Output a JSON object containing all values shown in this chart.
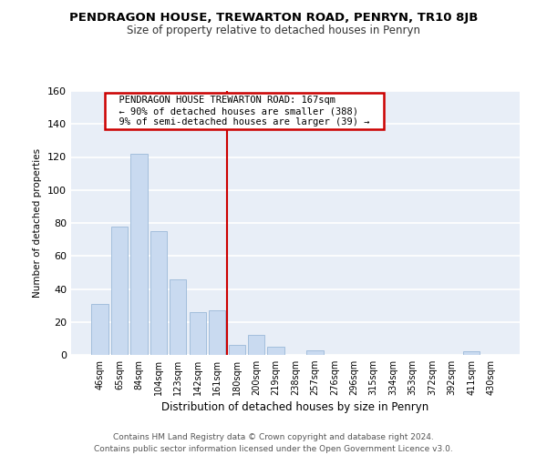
{
  "title": "PENDRAGON HOUSE, TREWARTON ROAD, PENRYN, TR10 8JB",
  "subtitle": "Size of property relative to detached houses in Penryn",
  "xlabel": "Distribution of detached houses by size in Penryn",
  "ylabel": "Number of detached properties",
  "bar_labels": [
    "46sqm",
    "65sqm",
    "84sqm",
    "104sqm",
    "123sqm",
    "142sqm",
    "161sqm",
    "180sqm",
    "200sqm",
    "219sqm",
    "238sqm",
    "257sqm",
    "276sqm",
    "296sqm",
    "315sqm",
    "334sqm",
    "353sqm",
    "372sqm",
    "392sqm",
    "411sqm",
    "430sqm"
  ],
  "bar_values": [
    31,
    78,
    122,
    75,
    46,
    26,
    27,
    6,
    12,
    5,
    0,
    3,
    0,
    0,
    0,
    0,
    0,
    0,
    0,
    2,
    0
  ],
  "bar_color": "#c9daf0",
  "bar_edge_color": "#9ab8d8",
  "ylim": [
    0,
    160
  ],
  "yticks": [
    0,
    20,
    40,
    60,
    80,
    100,
    120,
    140,
    160
  ],
  "vline_x": 6.5,
  "vline_color": "#cc0000",
  "annotation_title": "PENDRAGON HOUSE TREWARTON ROAD: 167sqm",
  "annotation_line1": "← 90% of detached houses are smaller (388)",
  "annotation_line2": "9% of semi-detached houses are larger (39) →",
  "annotation_box_facecolor": "#ffffff",
  "annotation_box_edgecolor": "#cc0000",
  "footer1": "Contains HM Land Registry data © Crown copyright and database right 2024.",
  "footer2": "Contains public sector information licensed under the Open Government Licence v3.0.",
  "bg_color": "#ffffff",
  "plot_bg_color": "#e8eef7"
}
